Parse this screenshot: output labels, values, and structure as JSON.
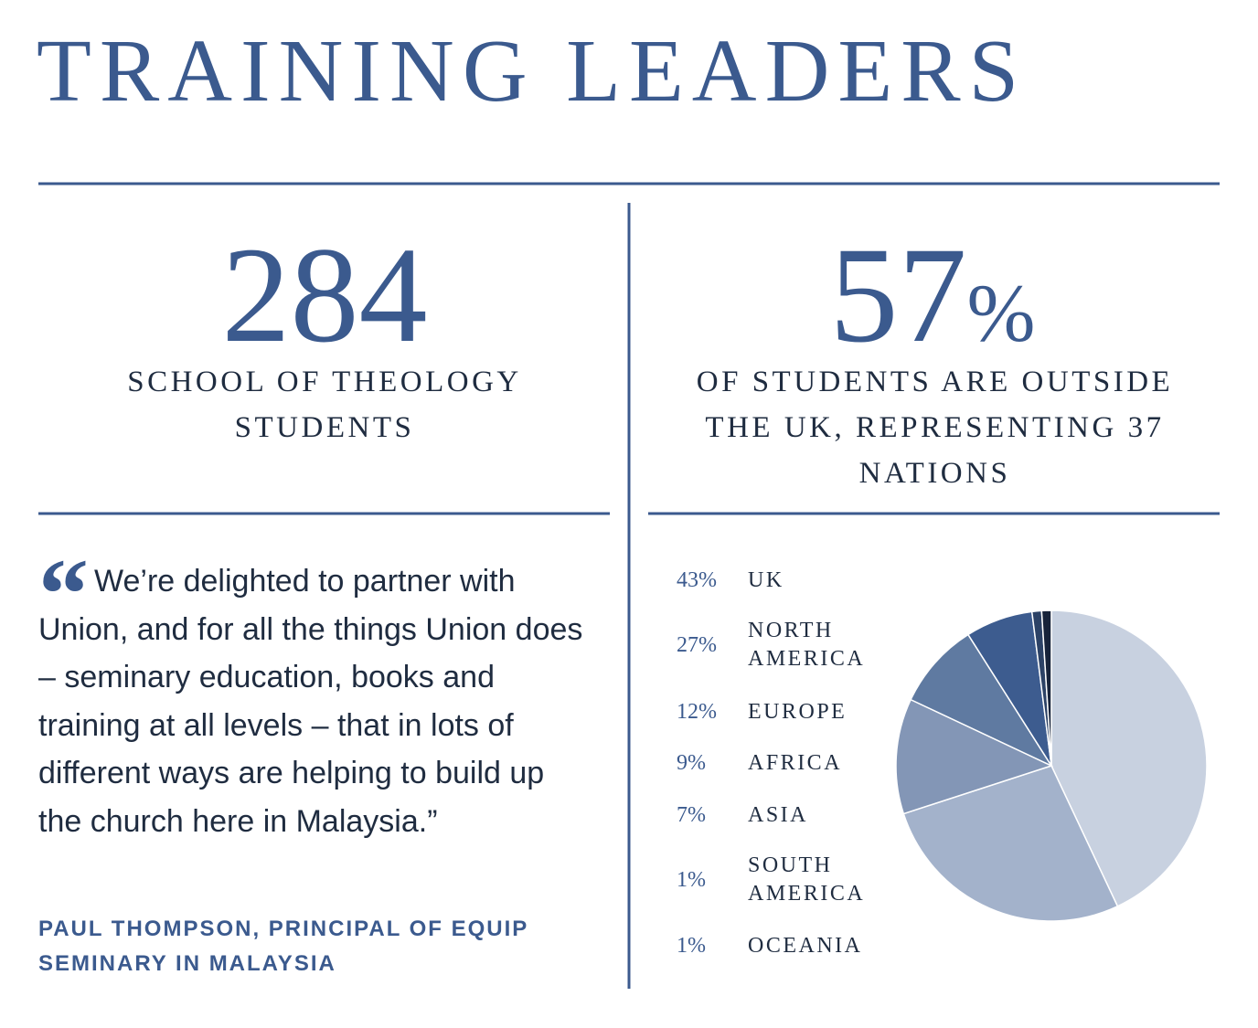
{
  "title": "TRAINING LEADERS",
  "stats": [
    {
      "number": "284",
      "label": "SCHOOL OF THEOLOGY STUDENTS"
    },
    {
      "number": "57",
      "unit": "%",
      "label": "OF STUDENTS ARE OUTSIDE THE UK, REPRESENTING 37 NATIONS"
    }
  ],
  "quote": {
    "open_mark": "“",
    "text": "We’re delighted to partner with Union, and for all the things Union does – seminary education, books and training at all levels – that in lots of different ways are helping to build up the church here in Malaysia.”",
    "attribution": "PAUL THOMPSON, PRINCIPAL OF EQUIP SEMINARY IN MALAYSIA"
  },
  "chart_data": {
    "type": "pie",
    "categories": [
      "UK",
      "NORTH AMERICA",
      "EUROPE",
      "AFRICA",
      "ASIA",
      "SOUTH AMERICA",
      "OCEANIA"
    ],
    "values": [
      43,
      27,
      12,
      9,
      7,
      1,
      1
    ],
    "value_labels": [
      "43%",
      "27%",
      "12%",
      "9%",
      "7%",
      "1%",
      "1%"
    ],
    "colors": [
      "#c8d1e0",
      "#a3b2cb",
      "#8396b6",
      "#5f7aa1",
      "#3d5c8f",
      "#2c4266",
      "#17233a"
    ]
  }
}
